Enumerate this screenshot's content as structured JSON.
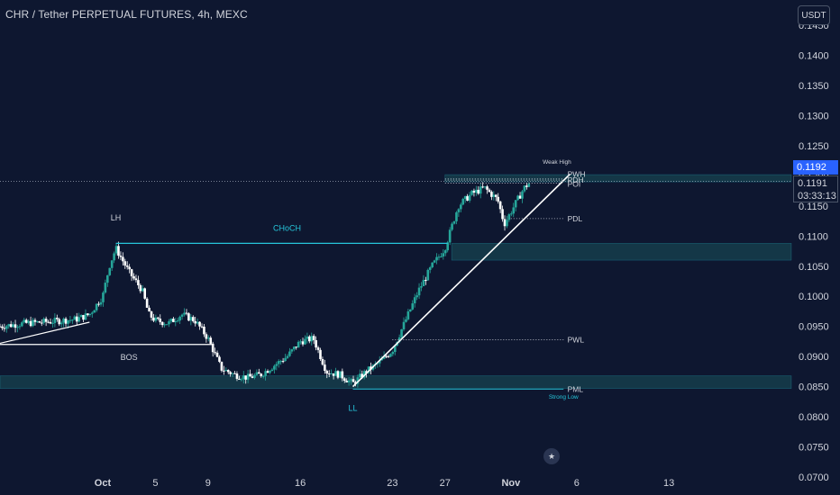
{
  "header": {
    "title": "CHR / Tether PERPETUAL FUTURES, 4h, MEXC"
  },
  "currency_button": {
    "label": "USDT"
  },
  "price_tags": {
    "last_price": "0.1192",
    "current_price": "0.1191",
    "countdown": "03:33:13"
  },
  "colors": {
    "background": "#0e1730",
    "bull": "#26a69a",
    "bear": "#ffffff",
    "accent": "#26c6da",
    "zone": "#17434f"
  },
  "icons": {
    "flag": "us-flag-icon"
  },
  "chart_data": {
    "type": "candlestick",
    "timeframe": "4h",
    "y_axis": {
      "ylim": [
        0.07,
        0.148
      ],
      "ticks": [
        "0.1450",
        "0.1400",
        "0.1350",
        "0.1300",
        "0.1250",
        "0.1200",
        "0.1150",
        "0.1100",
        "0.1050",
        "0.1000",
        "0.0950",
        "0.0900",
        "0.0850",
        "0.0800",
        "0.0750",
        "0.0700"
      ]
    },
    "x_axis": {
      "ticks": [
        "Oct",
        "5",
        "9",
        "16",
        "23",
        "27",
        "Nov",
        "6",
        "13"
      ],
      "tick_days": [
        1,
        5,
        9,
        16,
        23,
        27,
        32,
        37,
        44
      ],
      "xlim_days": [
        -6.8,
        53.3
      ]
    },
    "grid": false,
    "price_path": [
      [
        -6.8,
        0.095
      ],
      [
        -5,
        0.0955
      ],
      [
        -3,
        0.0958
      ],
      [
        -1,
        0.0962
      ],
      [
        0,
        0.097
      ],
      [
        1,
        0.1
      ],
      [
        1.5,
        0.105
      ],
      [
        2,
        0.108
      ],
      [
        3,
        0.104
      ],
      [
        4,
        0.101
      ],
      [
        4.5,
        0.097
      ],
      [
        5,
        0.096
      ],
      [
        6,
        0.0955
      ],
      [
        7,
        0.097
      ],
      [
        8,
        0.096
      ],
      [
        9,
        0.093
      ],
      [
        10,
        0.088
      ],
      [
        11,
        0.087
      ],
      [
        12,
        0.0865
      ],
      [
        13,
        0.087
      ],
      [
        14,
        0.0885
      ],
      [
        15,
        0.09
      ],
      [
        16,
        0.0925
      ],
      [
        17,
        0.093
      ],
      [
        18,
        0.0875
      ],
      [
        19,
        0.087
      ],
      [
        20,
        0.0855
      ],
      [
        21,
        0.0875
      ],
      [
        22,
        0.089
      ],
      [
        23,
        0.091
      ],
      [
        24,
        0.096
      ],
      [
        25,
        0.101
      ],
      [
        26,
        0.105
      ],
      [
        27,
        0.108
      ],
      [
        28,
        0.115
      ],
      [
        29,
        0.117
      ],
      [
        30,
        0.118
      ],
      [
        31,
        0.116
      ],
      [
        31.5,
        0.112
      ],
      [
        32,
        0.114
      ],
      [
        33,
        0.118
      ],
      [
        33.5,
        0.119
      ]
    ],
    "levels": [
      {
        "label": "PWH",
        "value": 0.1195
      },
      {
        "label": "PDH",
        "value": 0.1193
      },
      {
        "label": "POI",
        "value": 0.1188
      },
      {
        "label": "PDL",
        "value": 0.1129
      },
      {
        "label": "PWL",
        "value": 0.0928
      },
      {
        "label": "PML",
        "value": 0.0846
      }
    ],
    "zones": [
      {
        "from_day": 27.5,
        "from": 0.106,
        "to": 0.1088
      },
      {
        "from_day": -6.8,
        "from": 0.0847,
        "to": 0.0868
      },
      {
        "from_day": 27,
        "from": 0.119,
        "to": 0.1202
      }
    ],
    "annotations": [
      {
        "text": "LH",
        "day": 2,
        "value": 0.1126
      },
      {
        "text": "CHoCH",
        "day": 15,
        "value": 0.1109,
        "color": "#26c6da"
      },
      {
        "text": "BOS",
        "day": 3,
        "value": 0.0894
      },
      {
        "text": "LL",
        "day": 20,
        "value": 0.081,
        "color": "#26c6da"
      },
      {
        "text": "Weak High",
        "day": 35.5,
        "value": 0.122
      },
      {
        "text": "Strong Low",
        "day": 36,
        "value": 0.083,
        "color": "#26c6da"
      }
    ]
  }
}
